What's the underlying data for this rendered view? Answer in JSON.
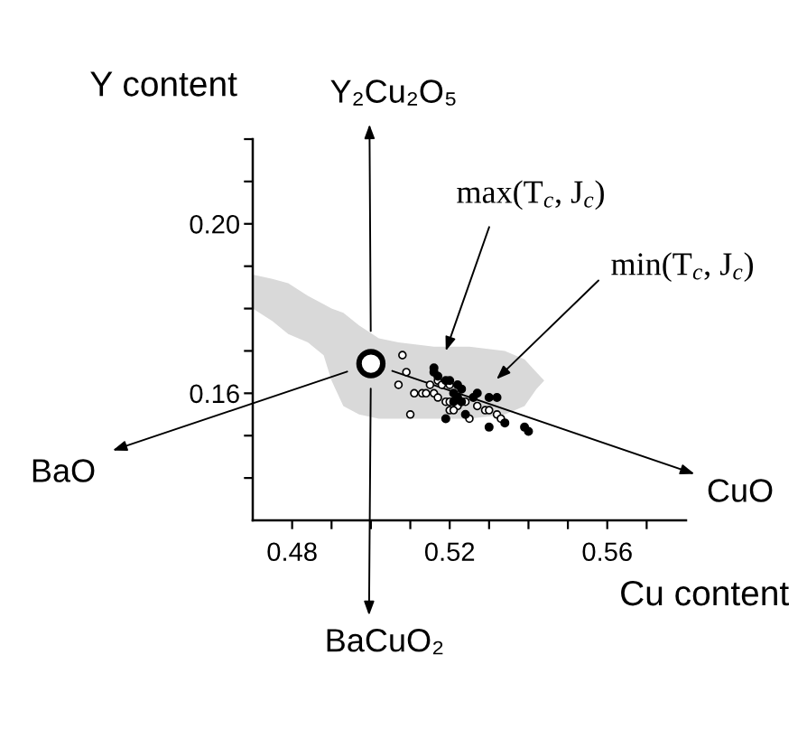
{
  "chart_data": {
    "type": "scatter",
    "xlabel": "Cu content",
    "ylabel": "Y content",
    "xlim": [
      0.47,
      0.58
    ],
    "ylim": [
      0.13,
      0.22
    ],
    "xticks": [
      0.48,
      {
        "value": 0.49,
        "label": null
      },
      {
        "value": 0.5,
        "label": null
      },
      {
        "value": 0.51,
        "label": null
      },
      0.52,
      {
        "value": 0.53,
        "label": null
      },
      {
        "value": 0.54,
        "label": null
      },
      {
        "value": 0.55,
        "label": null
      },
      0.56,
      {
        "value": 0.57,
        "label": null
      }
    ],
    "yticks": [
      {
        "value": 0.14,
        "label": null
      },
      {
        "value": 0.15,
        "label": null
      },
      0.16,
      {
        "value": 0.17,
        "label": null
      },
      {
        "value": 0.18,
        "label": null
      },
      {
        "value": 0.19,
        "label": null
      },
      {
        "value": 0.2,
        "label": "0.20"
      },
      {
        "value": 0.21,
        "label": null
      },
      {
        "value": 0.22,
        "label": null
      }
    ],
    "series": [
      {
        "type": "line",
        "color": "#d9d9d9",
        "x": [
          0.47,
          0.475,
          0.479,
          0.484,
          0.488,
          0.49,
          0.493,
          0.497,
          0.502,
          0.507,
          0.516,
          0.525,
          0.534,
          0.539,
          0.542,
          0.544
        ],
        "values": [
          null,
          null,
          null,
          null,
          null,
          null,
          null,
          null,
          null,
          null,
          null,
          null,
          null,
          null,
          null,
          null
        ],
        "upper": [
          0.188,
          0.187,
          0.186,
          0.183,
          0.181,
          0.18,
          0.179,
          0.176,
          0.173,
          0.172,
          0.171,
          0.171,
          0.17,
          0.168,
          0.165,
          0.163
        ],
        "lower": [
          0.18,
          0.177,
          0.174,
          0.172,
          0.169,
          0.163,
          0.157,
          0.155,
          0.154,
          0.154,
          0.154,
          0.154,
          0.155,
          0.157,
          0.161,
          0.163
        ]
      },
      {
        "marker": "circle",
        "color": "#ffffff",
        "x": [
          0.508,
          0.509,
          0.507,
          0.51,
          0.511,
          0.513,
          0.514,
          0.516,
          0.515,
          0.517,
          0.518,
          0.52,
          0.517,
          0.519,
          0.52,
          0.522,
          0.524,
          0.52,
          0.521,
          0.525,
          0.527,
          0.529,
          0.53,
          0.532,
          0.533
        ],
        "values": [
          0.169,
          0.165,
          0.162,
          0.155,
          0.16,
          0.16,
          0.16,
          0.16,
          0.162,
          0.163,
          0.162,
          0.162,
          0.159,
          0.158,
          0.158,
          0.157,
          0.158,
          0.156,
          0.156,
          0.154,
          0.157,
          0.156,
          0.156,
          0.155,
          0.154
        ]
      },
      {
        "marker": "circle",
        "color": "#000000",
        "x": [
          0.516,
          0.516,
          0.517,
          0.519,
          0.52,
          0.522,
          0.523,
          0.521,
          0.522,
          0.521,
          0.523,
          0.526,
          0.527,
          0.53,
          0.532,
          0.519,
          0.524,
          0.53,
          0.534,
          0.539,
          0.54
        ],
        "values": [
          0.166,
          0.165,
          0.164,
          0.163,
          0.163,
          0.162,
          0.161,
          0.16,
          0.159,
          0.158,
          0.158,
          0.159,
          0.16,
          0.159,
          0.159,
          0.154,
          0.155,
          0.152,
          0.153,
          0.152,
          0.151
        ]
      },
      {
        "marker": "circle",
        "color": "#ffffff",
        "x": [
          0.5
        ],
        "values": [
          0.167
        ]
      }
    ],
    "annotations": [
      "Y₂Cu₂O₅",
      "BaCuO₂",
      "BaO",
      "CuO",
      {
        "text": "max(T$_{c}$, J$_{c}$)",
        "x": 0.519,
        "y": 0.17
      },
      "min(T$_{c}$, J$_{c}$)"
    ]
  }
}
